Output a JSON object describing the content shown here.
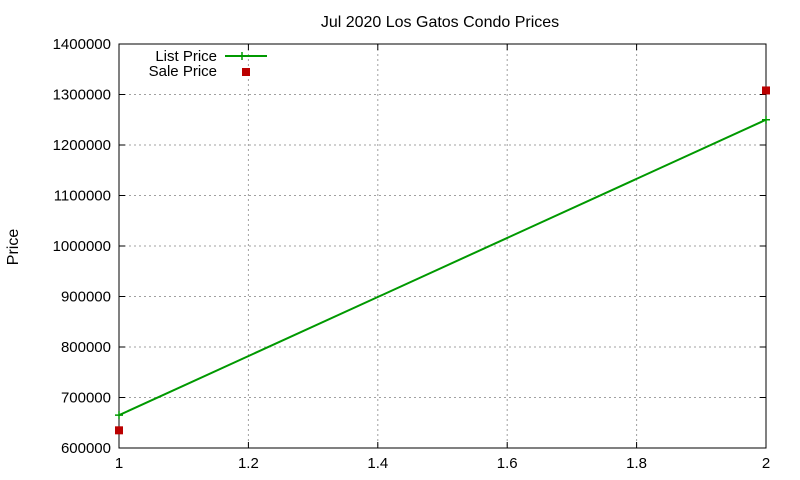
{
  "chart_data": {
    "type": "line",
    "title": "Jul 2020 Los Gatos Condo Prices",
    "xlabel": "",
    "ylabel": "Price",
    "xlim": [
      1,
      2
    ],
    "ylim": [
      600000,
      1400000
    ],
    "x_ticks": [
      "1",
      "1.2",
      "1.4",
      "1.6",
      "1.8",
      "2"
    ],
    "y_ticks": [
      "600000",
      "700000",
      "800000",
      "900000",
      "1000000",
      "1100000",
      "1200000",
      "1300000",
      "1400000"
    ],
    "grid": true,
    "legend_position": "top-left",
    "series": [
      {
        "name": "List Price",
        "style": "line-plus",
        "color": "#009900",
        "points": [
          [
            1,
            665000
          ],
          [
            2,
            1250000
          ]
        ]
      },
      {
        "name": "Sale Price",
        "style": "square",
        "color": "#bb0000",
        "points": [
          [
            1,
            635000
          ],
          [
            2,
            1308000
          ]
        ]
      }
    ]
  }
}
